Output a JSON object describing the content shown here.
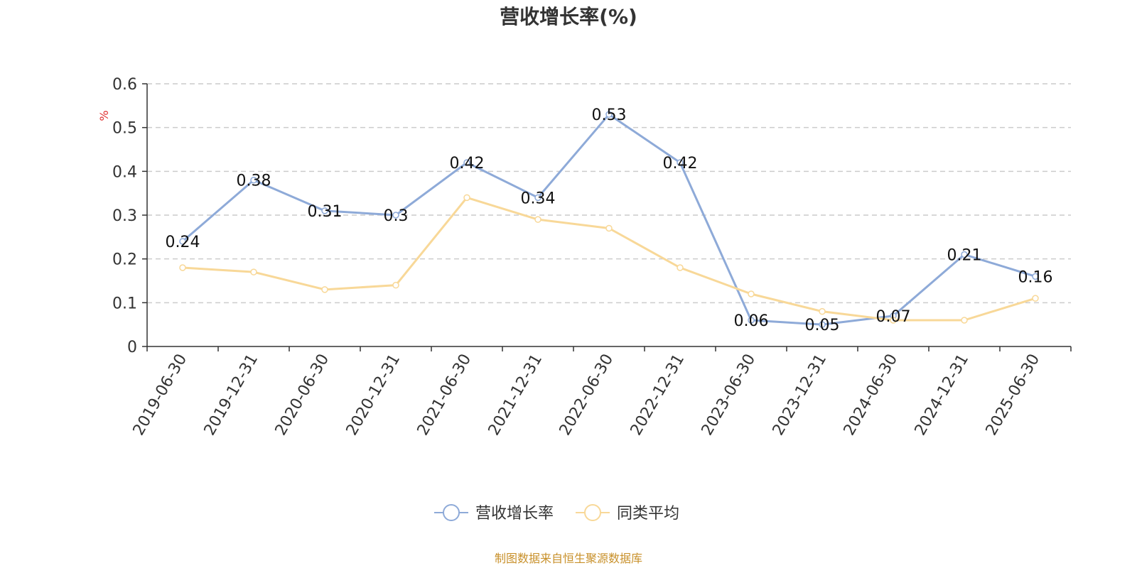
{
  "chart_data": {
    "type": "line",
    "title": "营收增长率(%)",
    "ylabel": "%",
    "ylim": [
      0,
      0.6
    ],
    "yticks": [
      0,
      0.1,
      0.2,
      0.3,
      0.4,
      0.5,
      0.6
    ],
    "categories": [
      "2019-06-30",
      "2019-12-31",
      "2020-06-30",
      "2020-12-31",
      "2021-06-30",
      "2021-12-31",
      "2022-06-30",
      "2022-12-31",
      "2023-06-30",
      "2023-12-31",
      "2024-06-30",
      "2024-12-31",
      "2025-06-30"
    ],
    "grid": true,
    "legend_position": "bottom",
    "series": [
      {
        "name": "营收增长率",
        "color": "#8eaad8",
        "values": [
          0.24,
          0.38,
          0.31,
          0.3,
          0.42,
          0.34,
          0.53,
          0.42,
          0.06,
          0.05,
          0.07,
          0.21,
          0.16
        ],
        "labels": [
          "0.24",
          "0.38",
          "0.31",
          "0.3",
          "0.42",
          "0.34",
          "0.53",
          "0.42",
          "0.06",
          "0.05",
          "0.07",
          "0.21",
          "0.16"
        ]
      },
      {
        "name": "同类平均",
        "color": "#f8d898",
        "values": [
          0.18,
          0.17,
          0.13,
          0.14,
          0.34,
          0.29,
          0.27,
          0.18,
          0.12,
          0.08,
          0.06,
          0.06,
          0.11
        ]
      }
    ]
  },
  "source_text": "制图数据来自恒生聚源数据库"
}
